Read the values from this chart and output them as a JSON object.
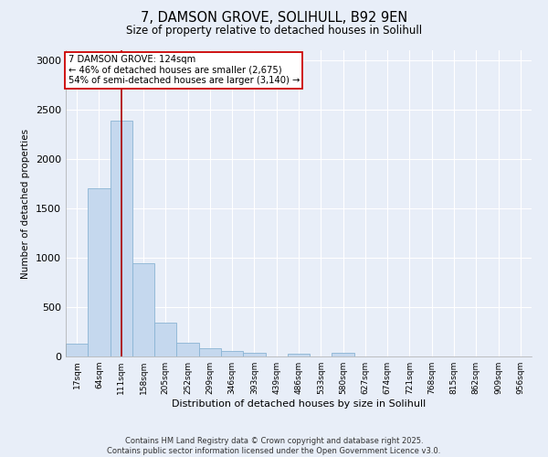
{
  "title_line1": "7, DAMSON GROVE, SOLIHULL, B92 9EN",
  "title_line2": "Size of property relative to detached houses in Solihull",
  "xlabel": "Distribution of detached houses by size in Solihull",
  "ylabel": "Number of detached properties",
  "categories": [
    "17sqm",
    "64sqm",
    "111sqm",
    "158sqm",
    "205sqm",
    "252sqm",
    "299sqm",
    "346sqm",
    "393sqm",
    "439sqm",
    "486sqm",
    "533sqm",
    "580sqm",
    "627sqm",
    "674sqm",
    "721sqm",
    "768sqm",
    "815sqm",
    "862sqm",
    "909sqm",
    "956sqm"
  ],
  "values": [
    130,
    1700,
    2390,
    940,
    340,
    140,
    80,
    55,
    35,
    0,
    30,
    0,
    40,
    0,
    0,
    0,
    0,
    0,
    0,
    0,
    0
  ],
  "bar_color": "#c5d8ee",
  "bar_edge_color": "#8ab4d4",
  "vline_x_index": 2,
  "vline_color": "#aa0000",
  "annotation_title": "7 DAMSON GROVE: 124sqm",
  "annotation_line2": "← 46% of detached houses are smaller (2,675)",
  "annotation_line3": "54% of semi-detached houses are larger (3,140) →",
  "annotation_box_color": "#ffffff",
  "annotation_box_edge_color": "#cc0000",
  "ylim": [
    0,
    3100
  ],
  "yticks": [
    0,
    500,
    1000,
    1500,
    2000,
    2500,
    3000
  ],
  "bg_color": "#e8eef8",
  "grid_color": "#ffffff",
  "footer_line1": "Contains HM Land Registry data © Crown copyright and database right 2025.",
  "footer_line2": "Contains public sector information licensed under the Open Government Licence v3.0."
}
